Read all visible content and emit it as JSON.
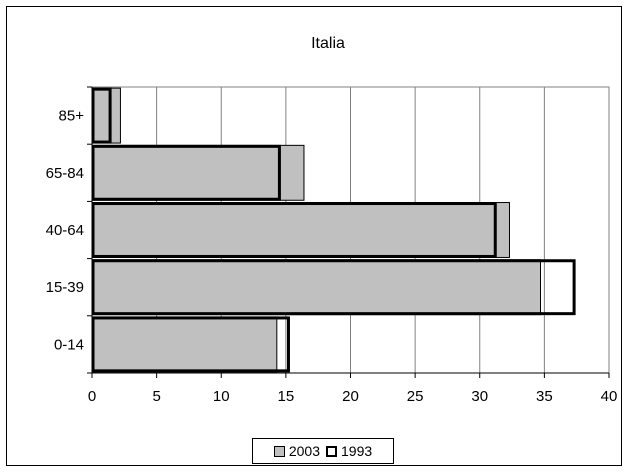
{
  "chart_data": {
    "type": "bar",
    "orientation": "horizontal",
    "title": "Italia",
    "categories": [
      "85+",
      "65-84",
      "40-64",
      "15-39",
      "0-14"
    ],
    "series": [
      {
        "name": "2003",
        "values": [
          2.2,
          16.4,
          32.3,
          34.7,
          14.3
        ],
        "fill": "#c0c0c0",
        "stroke": "#000000"
      },
      {
        "name": "1993",
        "values": [
          1.4,
          14.5,
          31.2,
          37.3,
          15.2
        ],
        "fill": "none",
        "stroke": "#000000"
      }
    ],
    "xlim": [
      0,
      40
    ],
    "xticks": [
      0,
      5,
      10,
      15,
      20,
      25,
      30,
      35,
      40
    ],
    "grid": "vertical",
    "legend": "bottom"
  }
}
